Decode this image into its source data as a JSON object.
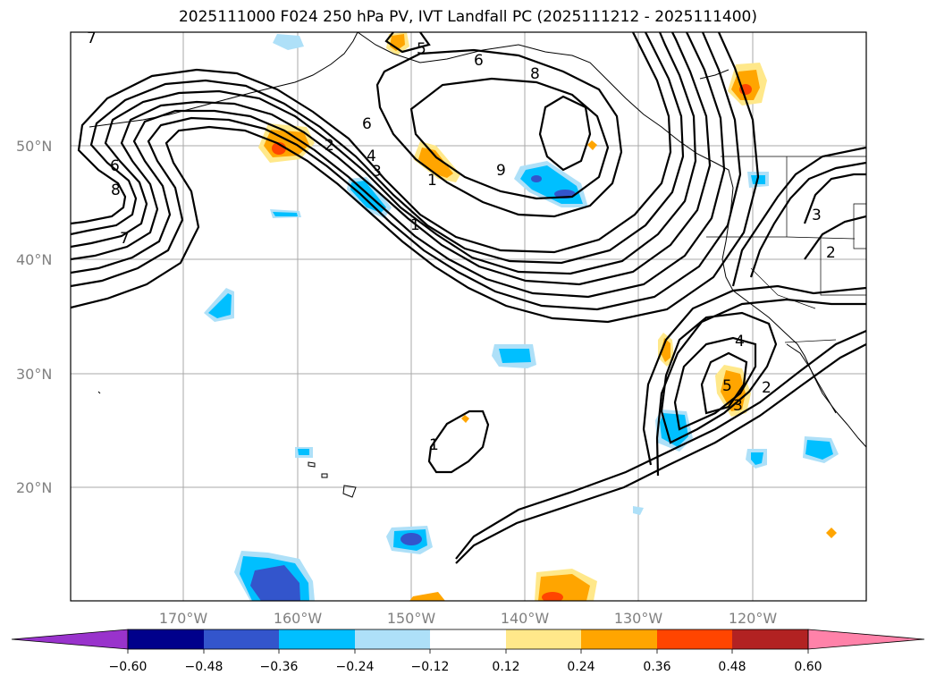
{
  "title": "2025111000 F024 250 hPa PV, IVT Landfall PC (2025111212 - 2025111400)",
  "map": {
    "lat_labels": [
      "50°N",
      "40°N",
      "30°N",
      "20°N"
    ],
    "lon_labels": [
      "170°W",
      "160°W",
      "150°W",
      "140°W",
      "130°W",
      "120°W"
    ],
    "contour_labels": [
      "7",
      "6",
      "8",
      "7",
      "5",
      "6",
      "8",
      "6",
      "2",
      "4",
      "3",
      "1",
      "1",
      "9",
      "3",
      "2",
      "4",
      "5",
      "3",
      "2",
      "1"
    ]
  },
  "colorbar": {
    "ticks": [
      "−0.60",
      "−0.48",
      "−0.36",
      "−0.24",
      "−0.12",
      "0.12",
      "0.24",
      "0.36",
      "0.48",
      "0.60"
    ],
    "colors": [
      "#9933cc",
      "#00008b",
      "#3355cc",
      "#00bfff",
      "#aee0f8",
      "#ffffff",
      "#ffe88a",
      "#ffa500",
      "#ff4500",
      "#b22222",
      "#ff82a9"
    ]
  }
}
